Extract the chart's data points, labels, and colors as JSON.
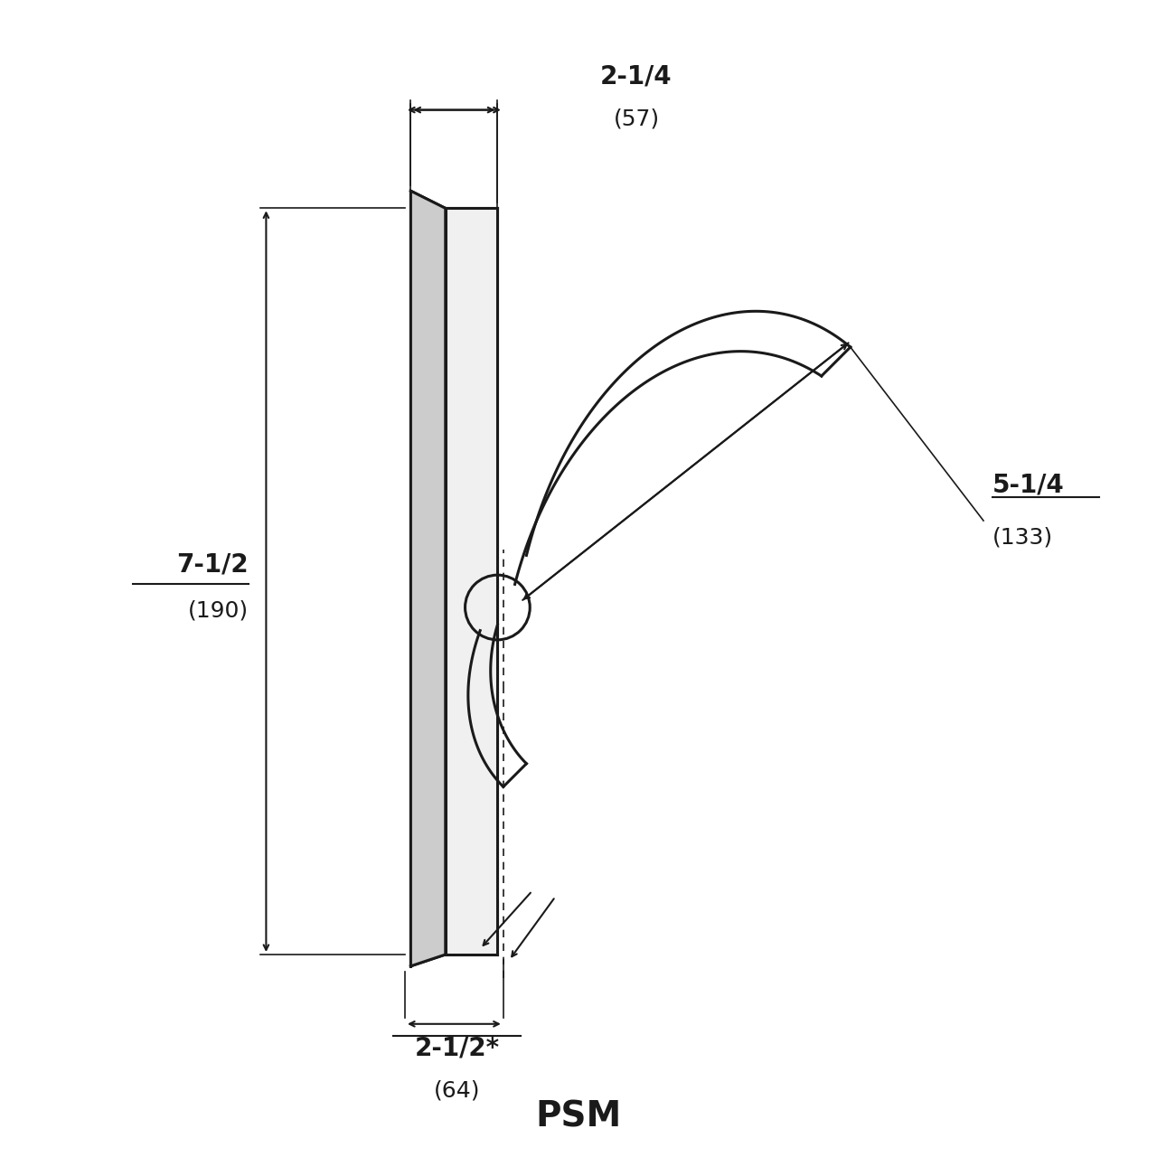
{
  "title": "PSM",
  "title_fontsize": 28,
  "background_color": "#ffffff",
  "line_color": "#1a1a1a",
  "dim_color": "#1a1a1a",
  "dim_fontsize": 20,
  "dim_fontsize_sub": 18,
  "dims": {
    "top_width_label": "2-1/4",
    "top_width_sub": "(57)",
    "height_label": "7-1/2",
    "height_sub": "(190)",
    "bottom_label": "2-1/2*",
    "bottom_sub": "(64)",
    "lever_label": "5-1/4",
    "lever_sub": "(133)"
  }
}
